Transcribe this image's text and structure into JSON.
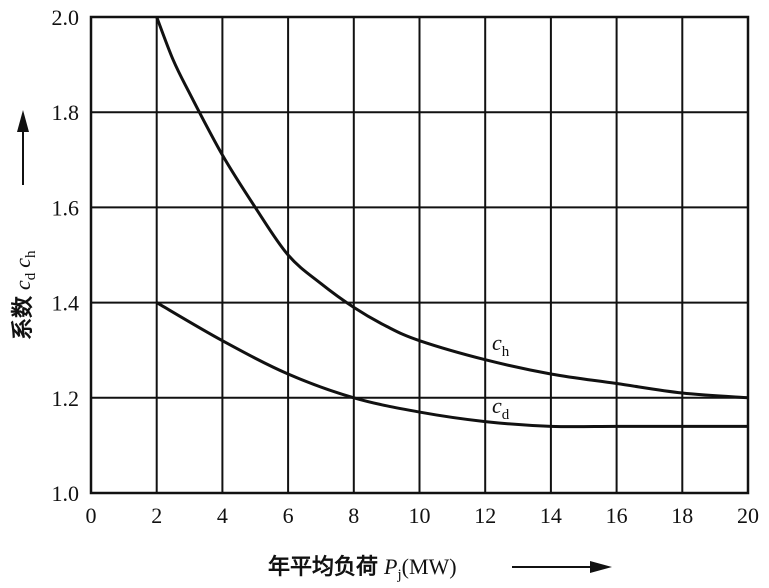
{
  "chart_data": {
    "type": "line",
    "title": "",
    "xlabel": {
      "text": "年平均负荷",
      "var": "P",
      "sub": "j",
      "unit": "(MW)"
    },
    "ylabel": {
      "text": "系数",
      "var1": "c",
      "sub1": "d",
      "var2": "c",
      "sub2": "h"
    },
    "xlim": [
      0,
      20
    ],
    "ylim": [
      1.0,
      2.0
    ],
    "xticks": [
      0,
      2,
      4,
      6,
      8,
      10,
      12,
      14,
      16,
      18,
      20
    ],
    "yticks": [
      1.0,
      1.2,
      1.4,
      1.6,
      1.8,
      2.0
    ],
    "grid": true,
    "series": [
      {
        "name": "ch",
        "var": "c",
        "sub": "h",
        "x": [
          2,
          2.5,
          3,
          4,
          5,
          6,
          7,
          8,
          9,
          10,
          12,
          14,
          16,
          18,
          20
        ],
        "y": [
          2.0,
          1.91,
          1.84,
          1.71,
          1.6,
          1.5,
          1.44,
          1.39,
          1.35,
          1.32,
          1.28,
          1.25,
          1.23,
          1.21,
          1.2
        ]
      },
      {
        "name": "cd",
        "var": "c",
        "sub": "d",
        "x": [
          2,
          4,
          6,
          8,
          10,
          12,
          14,
          16,
          18,
          20
        ],
        "y": [
          1.4,
          1.32,
          1.25,
          1.2,
          1.17,
          1.15,
          1.14,
          1.14,
          1.14,
          1.14
        ]
      }
    ]
  }
}
